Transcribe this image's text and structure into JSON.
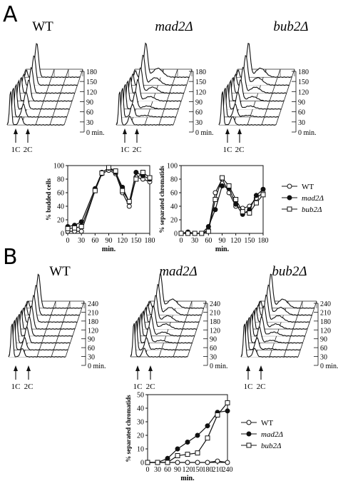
{
  "panels": [
    {
      "letter": "A",
      "strains": [
        "WT",
        "mad2Δ",
        "bub2Δ"
      ],
      "time_labels": [
        "180",
        "150",
        "120",
        "90",
        "60",
        "30",
        "0 min."
      ],
      "dna_markers": [
        "1C",
        "2C"
      ]
    },
    {
      "letter": "B",
      "strains": [
        "WT",
        "mad2Δ",
        "bub2Δ"
      ],
      "time_labels": [
        "240",
        "210",
        "180",
        "120",
        "90",
        "60",
        "30",
        "0 min."
      ],
      "dna_markers": [
        "1C",
        "2C"
      ]
    }
  ],
  "legend": [
    {
      "name": "WT",
      "marker": "open-circle"
    },
    {
      "name": "mad2Δ",
      "marker": "filled-circle"
    },
    {
      "name": "bub2Δ",
      "marker": "open-square"
    }
  ],
  "chart_data": [
    {
      "type": "line",
      "xlabel": "min.",
      "ylabel": "% budded cells",
      "xlim": [
        0,
        180
      ],
      "ylim": [
        0,
        100
      ],
      "x_ticks": [
        0,
        30,
        60,
        90,
        120,
        150,
        180
      ],
      "y_ticks": [
        0,
        20,
        40,
        60,
        80,
        100
      ],
      "series": [
        {
          "name": "WT",
          "marker": "open-circle",
          "x": [
            0,
            15,
            30,
            60,
            75,
            90,
            105,
            120,
            135,
            150,
            165,
            180
          ],
          "y": [
            3,
            3,
            3,
            63,
            88,
            93,
            88,
            60,
            40,
            83,
            80,
            76
          ]
        },
        {
          "name": "mad2Δ",
          "marker": "filled-circle",
          "x": [
            0,
            15,
            30,
            60,
            75,
            90,
            105,
            120,
            135,
            150,
            165,
            180
          ],
          "y": [
            10,
            12,
            17,
            66,
            90,
            96,
            90,
            68,
            46,
            90,
            85,
            80
          ]
        },
        {
          "name": "bub2Δ",
          "marker": "open-square",
          "x": [
            0,
            15,
            30,
            60,
            75,
            90,
            105,
            120,
            135,
            150,
            165,
            180
          ],
          "y": [
            7,
            8,
            10,
            63,
            89,
            97,
            92,
            63,
            47,
            80,
            90,
            82
          ]
        }
      ]
    },
    {
      "type": "line",
      "xlabel": "min.",
      "ylabel": "% separated chromatids",
      "xlim": [
        0,
        180
      ],
      "ylim": [
        0,
        100
      ],
      "x_ticks": [
        0,
        30,
        60,
        90,
        120,
        150,
        180
      ],
      "y_ticks": [
        0,
        20,
        40,
        60,
        80,
        100
      ],
      "series": [
        {
          "name": "WT",
          "marker": "open-circle",
          "x": [
            0,
            15,
            30,
            45,
            60,
            75,
            90,
            105,
            120,
            135,
            150,
            165,
            180
          ],
          "y": [
            0,
            0,
            0,
            0,
            5,
            60,
            80,
            60,
            40,
            37,
            40,
            52,
            60
          ]
        },
        {
          "name": "mad2Δ",
          "marker": "filled-circle",
          "x": [
            0,
            15,
            30,
            45,
            60,
            75,
            90,
            105,
            120,
            135,
            150,
            165,
            180
          ],
          "y": [
            0,
            2,
            0,
            0,
            10,
            35,
            70,
            66,
            43,
            28,
            35,
            56,
            65
          ]
        },
        {
          "name": "bub2Δ",
          "marker": "open-square",
          "x": [
            0,
            15,
            30,
            45,
            60,
            75,
            90,
            105,
            120,
            135,
            150,
            165,
            180
          ],
          "y": [
            0,
            0,
            0,
            0,
            3,
            50,
            82,
            70,
            50,
            32,
            30,
            45,
            57
          ]
        }
      ]
    },
    {
      "type": "line",
      "xlabel": "min.",
      "ylabel": "% separated chromatids",
      "xlim": [
        0,
        240
      ],
      "ylim": [
        0,
        50
      ],
      "x_ticks": [
        0,
        30,
        60,
        90,
        120,
        150,
        180,
        210,
        240
      ],
      "y_ticks": [
        0,
        10,
        20,
        30,
        40,
        50
      ],
      "series": [
        {
          "name": "WT",
          "marker": "open-circle",
          "x": [
            0,
            30,
            60,
            90,
            120,
            150,
            180,
            210,
            240
          ],
          "y": [
            0,
            0,
            0,
            0,
            0,
            0,
            0,
            1,
            0
          ]
        },
        {
          "name": "mad2Δ",
          "marker": "filled-circle",
          "x": [
            0,
            30,
            60,
            90,
            120,
            150,
            180,
            210,
            240
          ],
          "y": [
            0,
            0,
            3,
            10,
            15,
            20,
            27,
            37,
            38
          ]
        },
        {
          "name": "bub2Δ",
          "marker": "open-square",
          "x": [
            0,
            30,
            60,
            90,
            120,
            150,
            180,
            210,
            240
          ],
          "y": [
            0,
            0,
            0,
            5,
            6,
            7,
            18,
            35,
            44
          ]
        }
      ]
    }
  ]
}
